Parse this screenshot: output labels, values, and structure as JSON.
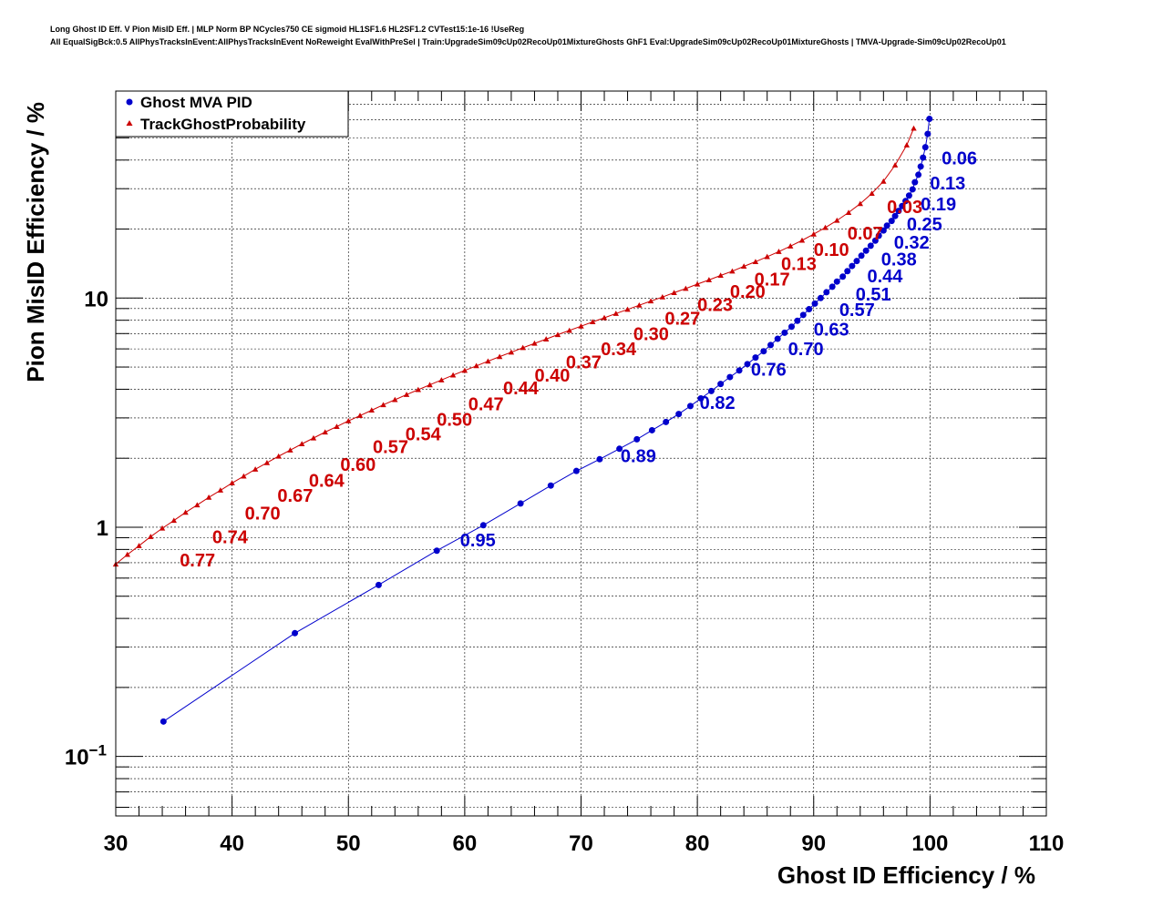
{
  "header": {
    "line1": "Long Ghost ID Eff. V Pion MisID Eff. | MLP Norm BP NCycles750 CE sigmoid HL1SF1.6 HL2SF1.2 CVTest15:1e-16 !UseReg",
    "line2": "All EqualSigBck:0.5 AllPhysTracksInEvent:AllPhysTracksInEvent NoReweight EvalWithPreSel | Train:UpgradeSim09cUp02RecoUp01MixtureGhosts GhF1 Eval:UpgradeSim09cUp02RecoUp01MixtureGhosts | TMVA-Upgrade-Sim09cUp02RecoUp01"
  },
  "chart_data": {
    "type": "line",
    "xlabel": "Ghost ID Efficiency / %",
    "ylabel": "Pion MisID Efficiency / %",
    "xlim": [
      30,
      110
    ],
    "ylim": [
      0.055,
      80
    ],
    "y_scale": "log",
    "grid": true,
    "legend_position": "top-left",
    "x_ticks": [
      "30",
      "40",
      "50",
      "60",
      "70",
      "80",
      "90",
      "100",
      "110"
    ],
    "y_ticks": [
      {
        "value": 0.1,
        "base": "10",
        "exp": "−1"
      },
      {
        "value": 1,
        "label": "1"
      },
      {
        "value": 10,
        "label": "10"
      }
    ],
    "series": [
      {
        "name": "Ghost MVA PID",
        "color": "#0000cc",
        "marker": "circle",
        "points": [
          [
            34.1,
            0.142
          ],
          [
            45.4,
            0.345
          ],
          [
            52.6,
            0.56
          ],
          [
            57.6,
            0.79
          ],
          [
            61.6,
            1.02
          ],
          [
            64.8,
            1.27
          ],
          [
            67.4,
            1.52
          ],
          [
            69.6,
            1.76
          ],
          [
            71.6,
            1.98
          ],
          [
            73.3,
            2.2
          ],
          [
            74.8,
            2.42
          ],
          [
            76.1,
            2.65
          ],
          [
            77.3,
            2.88
          ],
          [
            78.4,
            3.12
          ],
          [
            79.4,
            3.38
          ],
          [
            80.3,
            3.65
          ],
          [
            81.2,
            3.93
          ],
          [
            82.0,
            4.22
          ],
          [
            82.8,
            4.52
          ],
          [
            83.6,
            4.83
          ],
          [
            84.3,
            5.15
          ],
          [
            85.0,
            5.5
          ],
          [
            85.7,
            5.86
          ],
          [
            86.3,
            6.24
          ],
          [
            86.9,
            6.64
          ],
          [
            87.5,
            7.06
          ],
          [
            88.1,
            7.5
          ],
          [
            88.6,
            7.96
          ],
          [
            89.1,
            8.44
          ],
          [
            89.6,
            8.94
          ],
          [
            90.1,
            9.46
          ],
          [
            90.6,
            10.0
          ],
          [
            91.1,
            10.6
          ],
          [
            91.6,
            11.2
          ],
          [
            92.0,
            11.8
          ],
          [
            92.5,
            12.4
          ],
          [
            92.9,
            13.1
          ],
          [
            93.3,
            13.8
          ],
          [
            93.7,
            14.5
          ],
          [
            94.1,
            15.3
          ],
          [
            94.5,
            16.1
          ],
          [
            94.9,
            16.9
          ],
          [
            95.3,
            17.8
          ],
          [
            95.6,
            18.7
          ],
          [
            96.0,
            19.7
          ],
          [
            96.3,
            20.7
          ],
          [
            96.7,
            21.7
          ],
          [
            97.0,
            22.8
          ],
          [
            97.3,
            24.0
          ],
          [
            97.6,
            25.2
          ],
          [
            97.9,
            26.5
          ],
          [
            98.2,
            28.0
          ],
          [
            98.5,
            29.8
          ],
          [
            98.7,
            32.0
          ],
          [
            99.0,
            34.5
          ],
          [
            99.2,
            37.5
          ],
          [
            99.4,
            41.0
          ],
          [
            99.6,
            45.5
          ],
          [
            99.8,
            52.0
          ],
          [
            99.95,
            60.5
          ]
        ],
        "labels": [
          {
            "text": "0.06",
            "x": 101.0,
            "y": 40.8
          },
          {
            "text": "0.13",
            "x": 100.0,
            "y": 31.7
          },
          {
            "text": "0.19",
            "x": 99.2,
            "y": 25.7
          },
          {
            "text": "0.25",
            "x": 98.0,
            "y": 21.0
          },
          {
            "text": "0.32",
            "x": 96.9,
            "y": 17.5
          },
          {
            "text": "0.38",
            "x": 95.8,
            "y": 14.8
          },
          {
            "text": "0.44",
            "x": 94.6,
            "y": 12.5
          },
          {
            "text": "0.51",
            "x": 93.6,
            "y": 10.4
          },
          {
            "text": "0.57",
            "x": 92.2,
            "y": 8.9
          },
          {
            "text": "0.63",
            "x": 90.0,
            "y": 7.3
          },
          {
            "text": "0.70",
            "x": 87.8,
            "y": 6.0
          },
          {
            "text": "0.76",
            "x": 84.6,
            "y": 4.9
          },
          {
            "text": "0.82",
            "x": 80.2,
            "y": 3.5
          },
          {
            "text": "0.89",
            "x": 73.4,
            "y": 2.05
          },
          {
            "text": "0.95",
            "x": 59.6,
            "y": 0.88
          }
        ]
      },
      {
        "name": "TrackGhostProbability",
        "color": "#cc0000",
        "marker": "triangle",
        "points": [
          [
            30.0,
            0.69
          ],
          [
            31.0,
            0.76
          ],
          [
            32.0,
            0.83
          ],
          [
            33.0,
            0.91
          ],
          [
            34.0,
            0.99
          ],
          [
            35.0,
            1.07
          ],
          [
            36.0,
            1.16
          ],
          [
            37.0,
            1.25
          ],
          [
            38.0,
            1.35
          ],
          [
            39.0,
            1.45
          ],
          [
            40.0,
            1.56
          ],
          [
            41.0,
            1.67
          ],
          [
            42.0,
            1.79
          ],
          [
            43.0,
            1.91
          ],
          [
            44.0,
            2.04
          ],
          [
            45.0,
            2.17
          ],
          [
            46.0,
            2.31
          ],
          [
            47.0,
            2.45
          ],
          [
            48.0,
            2.6
          ],
          [
            49.0,
            2.75
          ],
          [
            50.0,
            2.91
          ],
          [
            51.0,
            3.07
          ],
          [
            52.0,
            3.24
          ],
          [
            53.0,
            3.42
          ],
          [
            54.0,
            3.6
          ],
          [
            55.0,
            3.79
          ],
          [
            56.0,
            3.98
          ],
          [
            57.0,
            4.18
          ],
          [
            58.0,
            4.39
          ],
          [
            59.0,
            4.61
          ],
          [
            60.0,
            4.83
          ],
          [
            61.0,
            5.06
          ],
          [
            62.0,
            5.3
          ],
          [
            63.0,
            5.55
          ],
          [
            64.0,
            5.8
          ],
          [
            65.0,
            6.07
          ],
          [
            66.0,
            6.34
          ],
          [
            67.0,
            6.62
          ],
          [
            68.0,
            6.92
          ],
          [
            69.0,
            7.22
          ],
          [
            70.0,
            7.54
          ],
          [
            71.0,
            7.87
          ],
          [
            72.0,
            8.2
          ],
          [
            73.0,
            8.56
          ],
          [
            74.0,
            8.92
          ],
          [
            75.0,
            9.3
          ],
          [
            76.0,
            9.7
          ],
          [
            77.0,
            10.1
          ],
          [
            78.0,
            10.55
          ],
          [
            79.0,
            11.0
          ],
          [
            80.0,
            11.5
          ],
          [
            81.0,
            12.0
          ],
          [
            82.0,
            12.55
          ],
          [
            83.0,
            13.1
          ],
          [
            84.0,
            13.75
          ],
          [
            85.0,
            14.4
          ],
          [
            86.0,
            15.15
          ],
          [
            87.0,
            15.95
          ],
          [
            88.0,
            16.85
          ],
          [
            89.0,
            17.85
          ],
          [
            90.0,
            19.0
          ],
          [
            91.0,
            20.3
          ],
          [
            92.0,
            21.8
          ],
          [
            93.0,
            23.6
          ],
          [
            94.0,
            25.8
          ],
          [
            95.0,
            28.6
          ],
          [
            96.0,
            32.3
          ],
          [
            97.0,
            38.0
          ],
          [
            98.0,
            46.5
          ],
          [
            98.6,
            55.0
          ]
        ],
        "labels": [
          {
            "text": "0.03",
            "x": 96.3,
            "y": 25.0
          },
          {
            "text": "0.07",
            "x": 92.9,
            "y": 19.2
          },
          {
            "text": "0.10",
            "x": 90.0,
            "y": 16.3
          },
          {
            "text": "0.13",
            "x": 87.2,
            "y": 14.1
          },
          {
            "text": "0.17",
            "x": 84.9,
            "y": 12.1
          },
          {
            "text": "0.20",
            "x": 82.8,
            "y": 10.7
          },
          {
            "text": "0.23",
            "x": 80.0,
            "y": 9.35
          },
          {
            "text": "0.27",
            "x": 77.2,
            "y": 8.15
          },
          {
            "text": "0.30",
            "x": 74.5,
            "y": 7.0
          },
          {
            "text": "0.34",
            "x": 71.7,
            "y": 6.0
          },
          {
            "text": "0.37",
            "x": 68.7,
            "y": 5.25
          },
          {
            "text": "0.40",
            "x": 66.0,
            "y": 4.6
          },
          {
            "text": "0.44",
            "x": 63.3,
            "y": 4.05
          },
          {
            "text": "0.47",
            "x": 60.3,
            "y": 3.45
          },
          {
            "text": "0.50",
            "x": 57.6,
            "y": 2.95
          },
          {
            "text": "0.54",
            "x": 54.9,
            "y": 2.55
          },
          {
            "text": "0.57",
            "x": 52.1,
            "y": 2.25
          },
          {
            "text": "0.60",
            "x": 49.3,
            "y": 1.88
          },
          {
            "text": "0.64",
            "x": 46.6,
            "y": 1.6
          },
          {
            "text": "0.67",
            "x": 43.9,
            "y": 1.38
          },
          {
            "text": "0.70",
            "x": 41.1,
            "y": 1.15
          },
          {
            "text": "0.74",
            "x": 38.3,
            "y": 0.91
          },
          {
            "text": "0.77",
            "x": 35.5,
            "y": 0.72
          }
        ]
      }
    ]
  }
}
